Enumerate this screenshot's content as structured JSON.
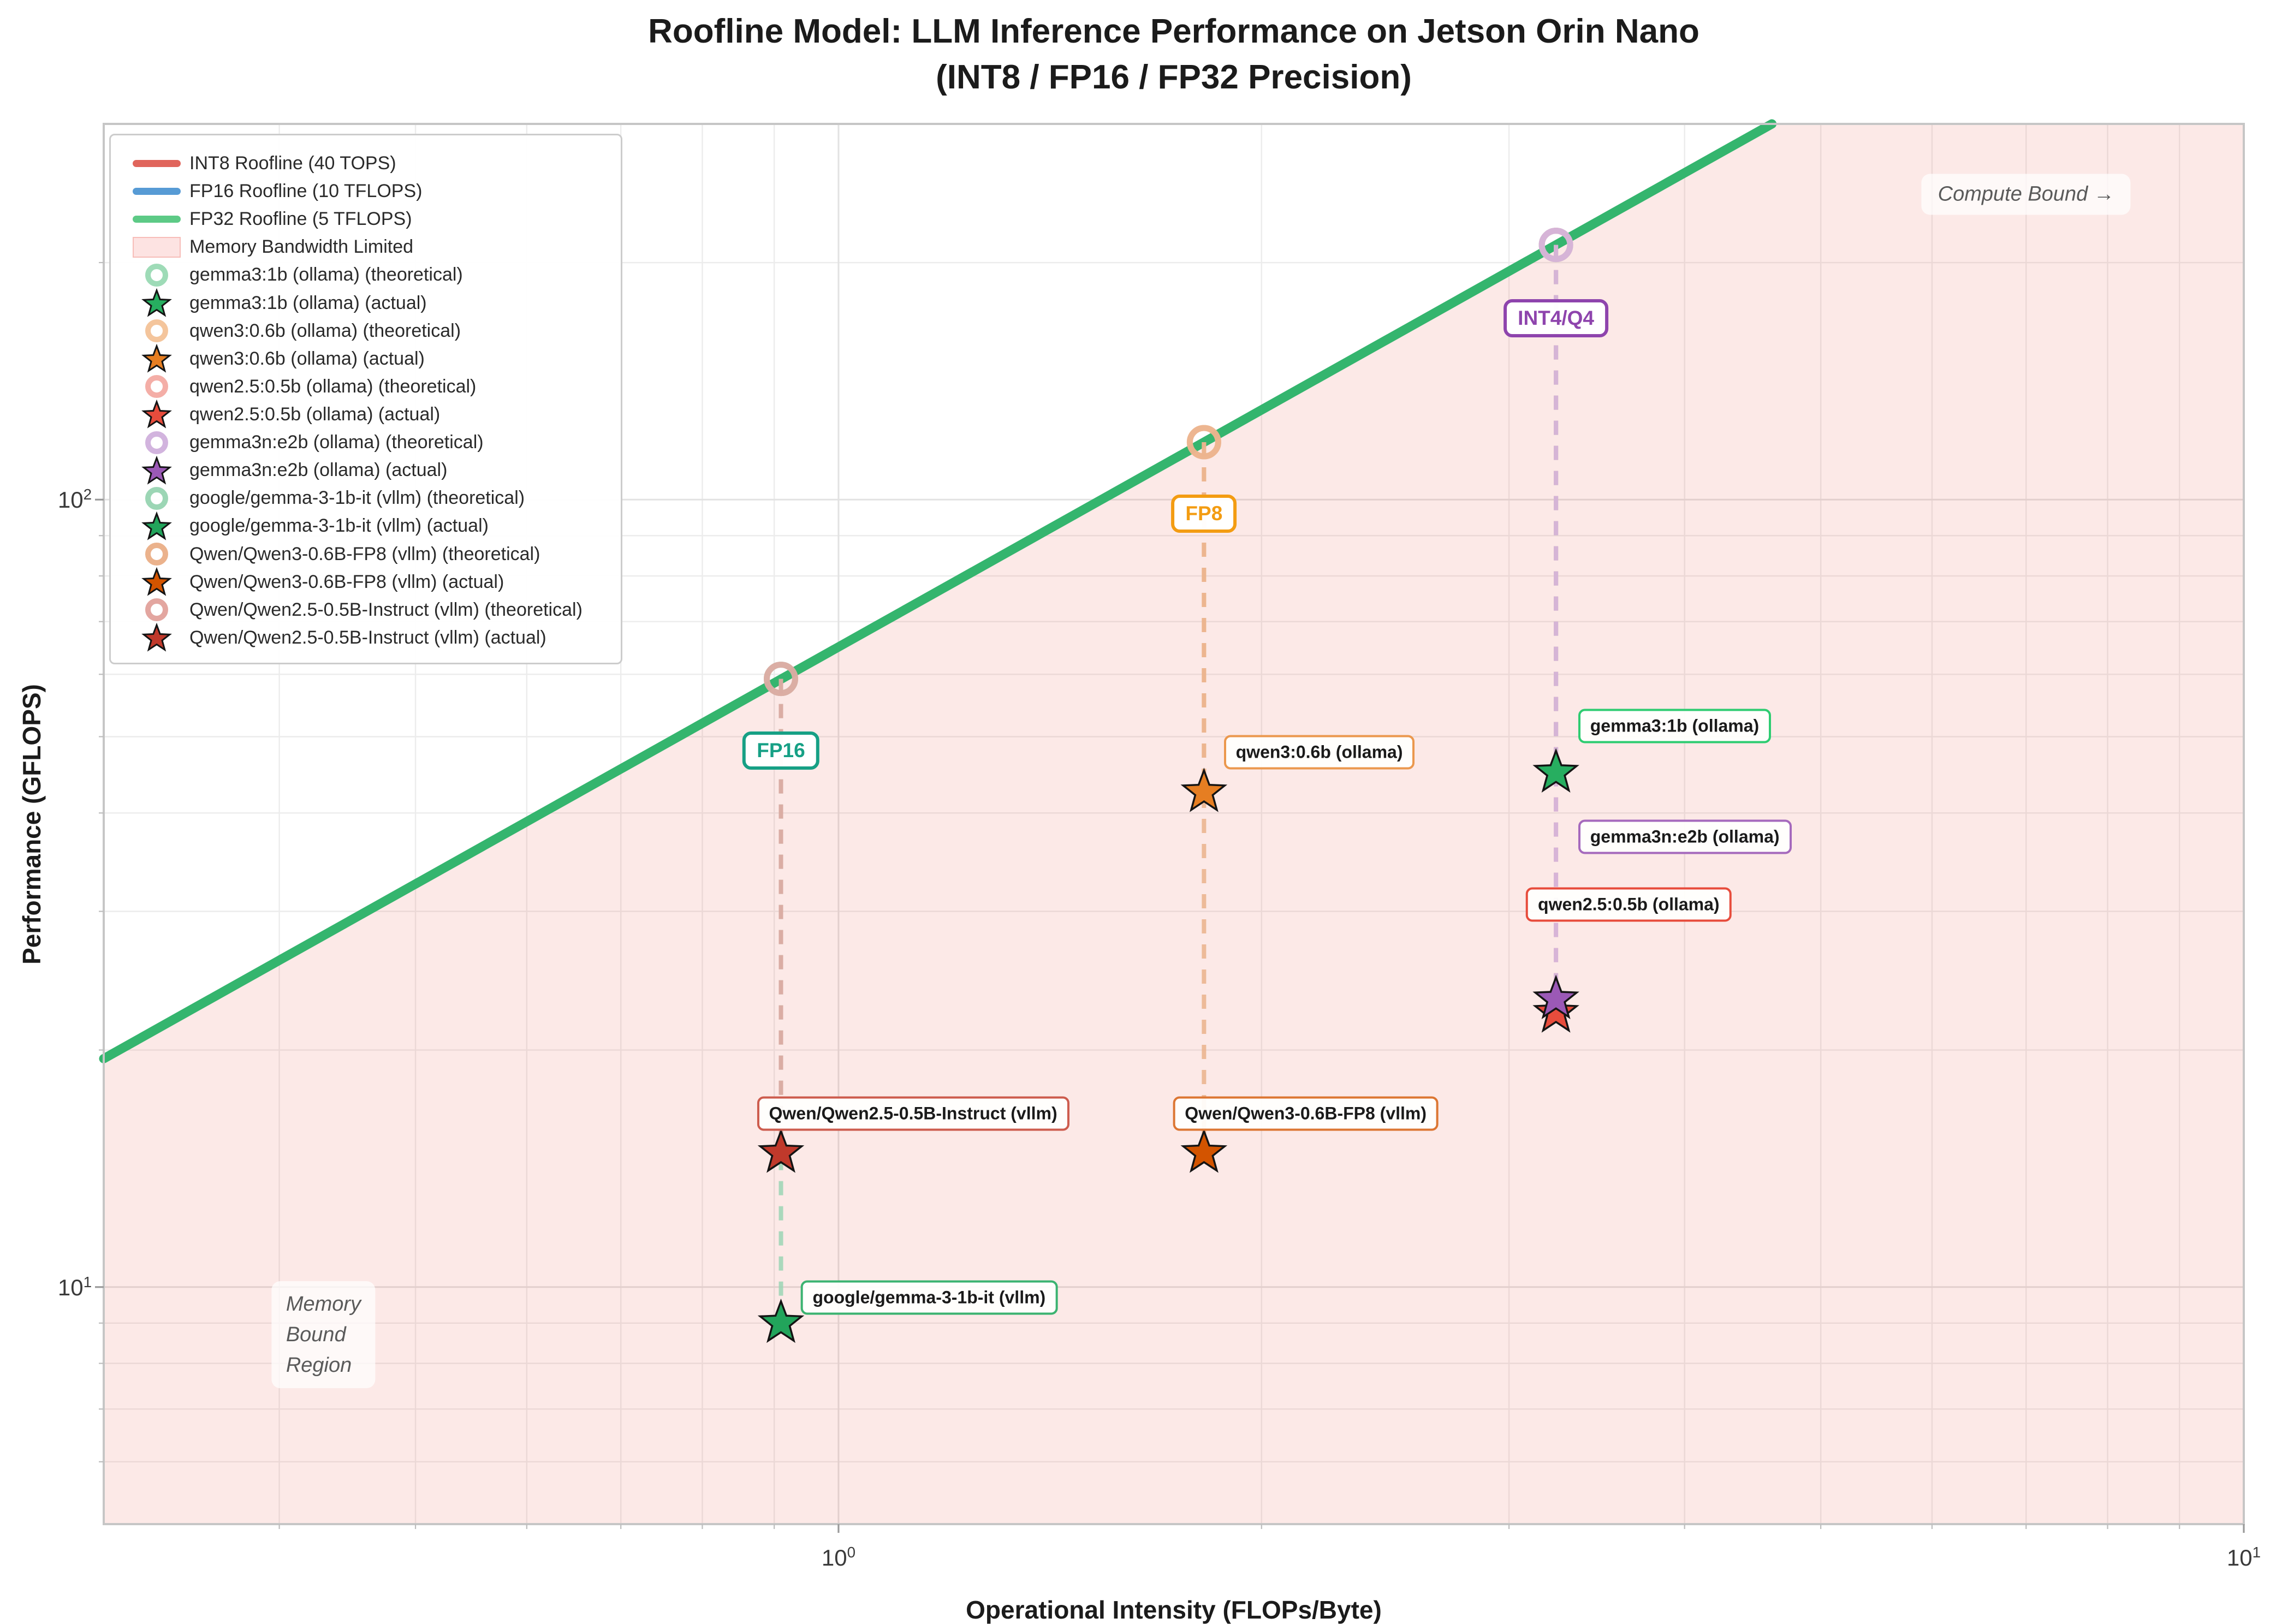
{
  "title": {
    "line1": "Roofline Model: LLM Inference Performance on Jetson Orin Nano",
    "line2": "(INT8 / FP16 / FP32 Precision)"
  },
  "axes": {
    "x_label": "Operational Intensity (FLOPs/Byte)",
    "y_label": "Performance (GFLOPS)",
    "x_ticks": [
      {
        "v": 1,
        "exp": "0"
      },
      {
        "v": 10,
        "exp": "1"
      }
    ],
    "y_ticks": [
      {
        "v": 10,
        "exp": "1"
      },
      {
        "v": 100,
        "exp": "2"
      }
    ],
    "x_minor": [
      0.4,
      0.5,
      0.6,
      0.7,
      0.8,
      0.9,
      2,
      3,
      4,
      5,
      6,
      7,
      8,
      9
    ],
    "y_minor": [
      6,
      7,
      8,
      9,
      20,
      30,
      40,
      50,
      60,
      70,
      80,
      90,
      200
    ]
  },
  "legend": {
    "items": [
      {
        "type": "line",
        "color": "#e0655c",
        "label": "INT8 Roofline (40 TOPS)"
      },
      {
        "type": "line",
        "color": "#579bd5",
        "label": "FP16 Roofline (10 TFLOPS)"
      },
      {
        "type": "line",
        "color": "#5dca86",
        "label": "FP32 Roofline (5 TFLOPS)"
      },
      {
        "type": "patch",
        "color": "#fde3e2",
        "label": "Memory Bandwidth Limited"
      },
      {
        "type": "circle",
        "color": "#9edbb7",
        "label": "gemma3:1b (ollama) (theoretical)"
      },
      {
        "type": "star",
        "color": "#27ae60",
        "label": "gemma3:1b (ollama) (actual)"
      },
      {
        "type": "circle",
        "color": "#f4c59c",
        "label": "qwen3:0.6b (ollama) (theoretical)"
      },
      {
        "type": "star",
        "color": "#e67e22",
        "label": "qwen3:0.6b (ollama) (actual)"
      },
      {
        "type": "circle",
        "color": "#f4aea7",
        "label": "qwen2.5:0.5b (ollama) (theoretical)"
      },
      {
        "type": "star",
        "color": "#e74c3c",
        "label": "qwen2.5:0.5b (ollama) (actual)"
      },
      {
        "type": "circle",
        "color": "#d2b4de",
        "label": "gemma3n:e2b (ollama) (theoretical)"
      },
      {
        "type": "star",
        "color": "#9b59b6",
        "label": "gemma3n:e2b (ollama) (actual)"
      },
      {
        "type": "circle",
        "color": "#9cd6b5",
        "label": "google/gemma-3-1b-it (vllm) (theoretical)"
      },
      {
        "type": "star",
        "color": "#22a45b",
        "label": "google/gemma-3-1b-it (vllm) (actual)"
      },
      {
        "type": "circle",
        "color": "#ebb28c",
        "label": "Qwen/Qwen3-0.6B-FP8 (vllm) (theoretical)"
      },
      {
        "type": "star",
        "color": "#d35400",
        "label": "Qwen/Qwen3-0.6B-FP8 (vllm) (actual)"
      },
      {
        "type": "circle",
        "color": "#e3a6a0",
        "label": "Qwen/Qwen2.5-0.5B-Instruct (vllm) (theoretical)"
      },
      {
        "type": "star",
        "color": "#c0392b",
        "label": "Qwen/Qwen2.5-0.5B-Instruct (vllm) (actual)"
      }
    ]
  },
  "chart_data": {
    "type": "scatter",
    "title": "Roofline Model: LLM Inference Performance on Jetson Orin Nano (INT8 / FP16 / FP32 Precision)",
    "xlabel": "Operational Intensity (FLOPs/Byte)",
    "ylabel": "Performance (GFLOPS)",
    "xscale": "log",
    "yscale": "log",
    "xlim": [
      0.3,
      10
    ],
    "ylim": [
      5,
      300
    ],
    "grid": true,
    "legend_position": "upper-left",
    "memory_diagonal": {
      "gflops_at_oi_1": 65
    },
    "region_color": "rgba(231,76,60,0.12)",
    "rooflines": [
      {
        "label": "INT8 Roofline (40 TOPS)",
        "tops": 40,
        "color": "#e0655c"
      },
      {
        "label": "FP16 Roofline (10 TFLOPS)",
        "tflops": 10,
        "color": "#579bd5"
      },
      {
        "label": "FP32 Roofline (5 TFLOPS)",
        "tflops": 5,
        "color": "#34b56e"
      }
    ],
    "precision_columns": [
      {
        "label": "FP16",
        "oi": 0.91,
        "theoretical_gflops": 59.2,
        "label_gflops": 48,
        "color": "#16a085"
      },
      {
        "label": "FP8",
        "oi": 1.82,
        "theoretical_gflops": 118.3,
        "label_gflops": 96,
        "color": "#f39c12"
      },
      {
        "label": "INT4/Q4",
        "oi": 3.24,
        "theoretical_gflops": 210.6,
        "label_gflops": 170,
        "color": "#8e44ad"
      }
    ],
    "models": [
      {
        "name": "gemma3:1b (ollama)",
        "oi": 3.24,
        "theoretical_gflops": 210.6,
        "actual_gflops": 45.0,
        "color": "#27ae60",
        "light_color": "#9edbb7"
      },
      {
        "name": "qwen3:0.6b (ollama)",
        "oi": 1.82,
        "theoretical_gflops": 118.3,
        "actual_gflops": 42.5,
        "color": "#e67e22",
        "light_color": "#f4c59c"
      },
      {
        "name": "qwen2.5:0.5b (ollama)",
        "oi": 3.24,
        "theoretical_gflops": 210.6,
        "actual_gflops": 22.3,
        "color": "#e74c3c",
        "light_color": "#f4aea7"
      },
      {
        "name": "gemma3n:e2b (ollama)",
        "oi": 3.24,
        "theoretical_gflops": 210.6,
        "actual_gflops": 23.2,
        "color": "#9b59b6",
        "light_color": "#d2b4de"
      },
      {
        "name": "google/gemma-3-1b-it (vllm)",
        "oi": 0.91,
        "theoretical_gflops": 59.2,
        "actual_gflops": 9.0,
        "color": "#22a45b",
        "light_color": "#9cd6b5"
      },
      {
        "name": "Qwen/Qwen3-0.6B-FP8 (vllm)",
        "oi": 1.82,
        "theoretical_gflops": 118.3,
        "actual_gflops": 14.8,
        "color": "#d35400",
        "light_color": "#ebb28c"
      },
      {
        "name": "Qwen/Qwen2.5-0.5B-Instruct (vllm)",
        "oi": 0.91,
        "theoretical_gflops": 59.2,
        "actual_gflops": 14.8,
        "color": "#c0392b",
        "light_color": "#e3a6a0"
      }
    ],
    "annotations": [
      {
        "text": "gemma3:1b (ollama)",
        "color": "#2ecc71",
        "oi": 3.36,
        "gflops": 51.6,
        "align": "left"
      },
      {
        "text": "gemma3n:e2b (ollama)",
        "color": "#a569bd",
        "oi": 3.36,
        "gflops": 37.3,
        "align": "left"
      },
      {
        "text": "qwen2.5:0.5b (ollama)",
        "color": "#e74c3c",
        "oi": 3.65,
        "gflops": 30.6,
        "align": "center"
      },
      {
        "text": "qwen3:0.6b (ollama)",
        "color": "#eb984e",
        "oi": 1.88,
        "gflops": 47.8,
        "align": "left"
      },
      {
        "text": "Qwen/Qwen2.5-0.5B-Instruct (vllm)",
        "color": "#cd5c4e",
        "oi": 1.13,
        "gflops": 16.6,
        "align": "center"
      },
      {
        "text": "Qwen/Qwen3-0.6B-FP8 (vllm)",
        "color": "#dc7633",
        "oi": 2.15,
        "gflops": 16.6,
        "align": "center"
      },
      {
        "text": "google/gemma-3-1b-it (vllm)",
        "color": "#3cb371",
        "oi": 1.16,
        "gflops": 9.7,
        "align": "center"
      }
    ],
    "notes": {
      "compute_bound": {
        "text": "Compute Bound →",
        "oi": 7.0,
        "gflops": 244
      },
      "memory_bound": {
        "lines": [
          "Memory",
          "Bound",
          "Region"
        ],
        "oi": 0.43,
        "gflops": 8.7
      }
    }
  }
}
